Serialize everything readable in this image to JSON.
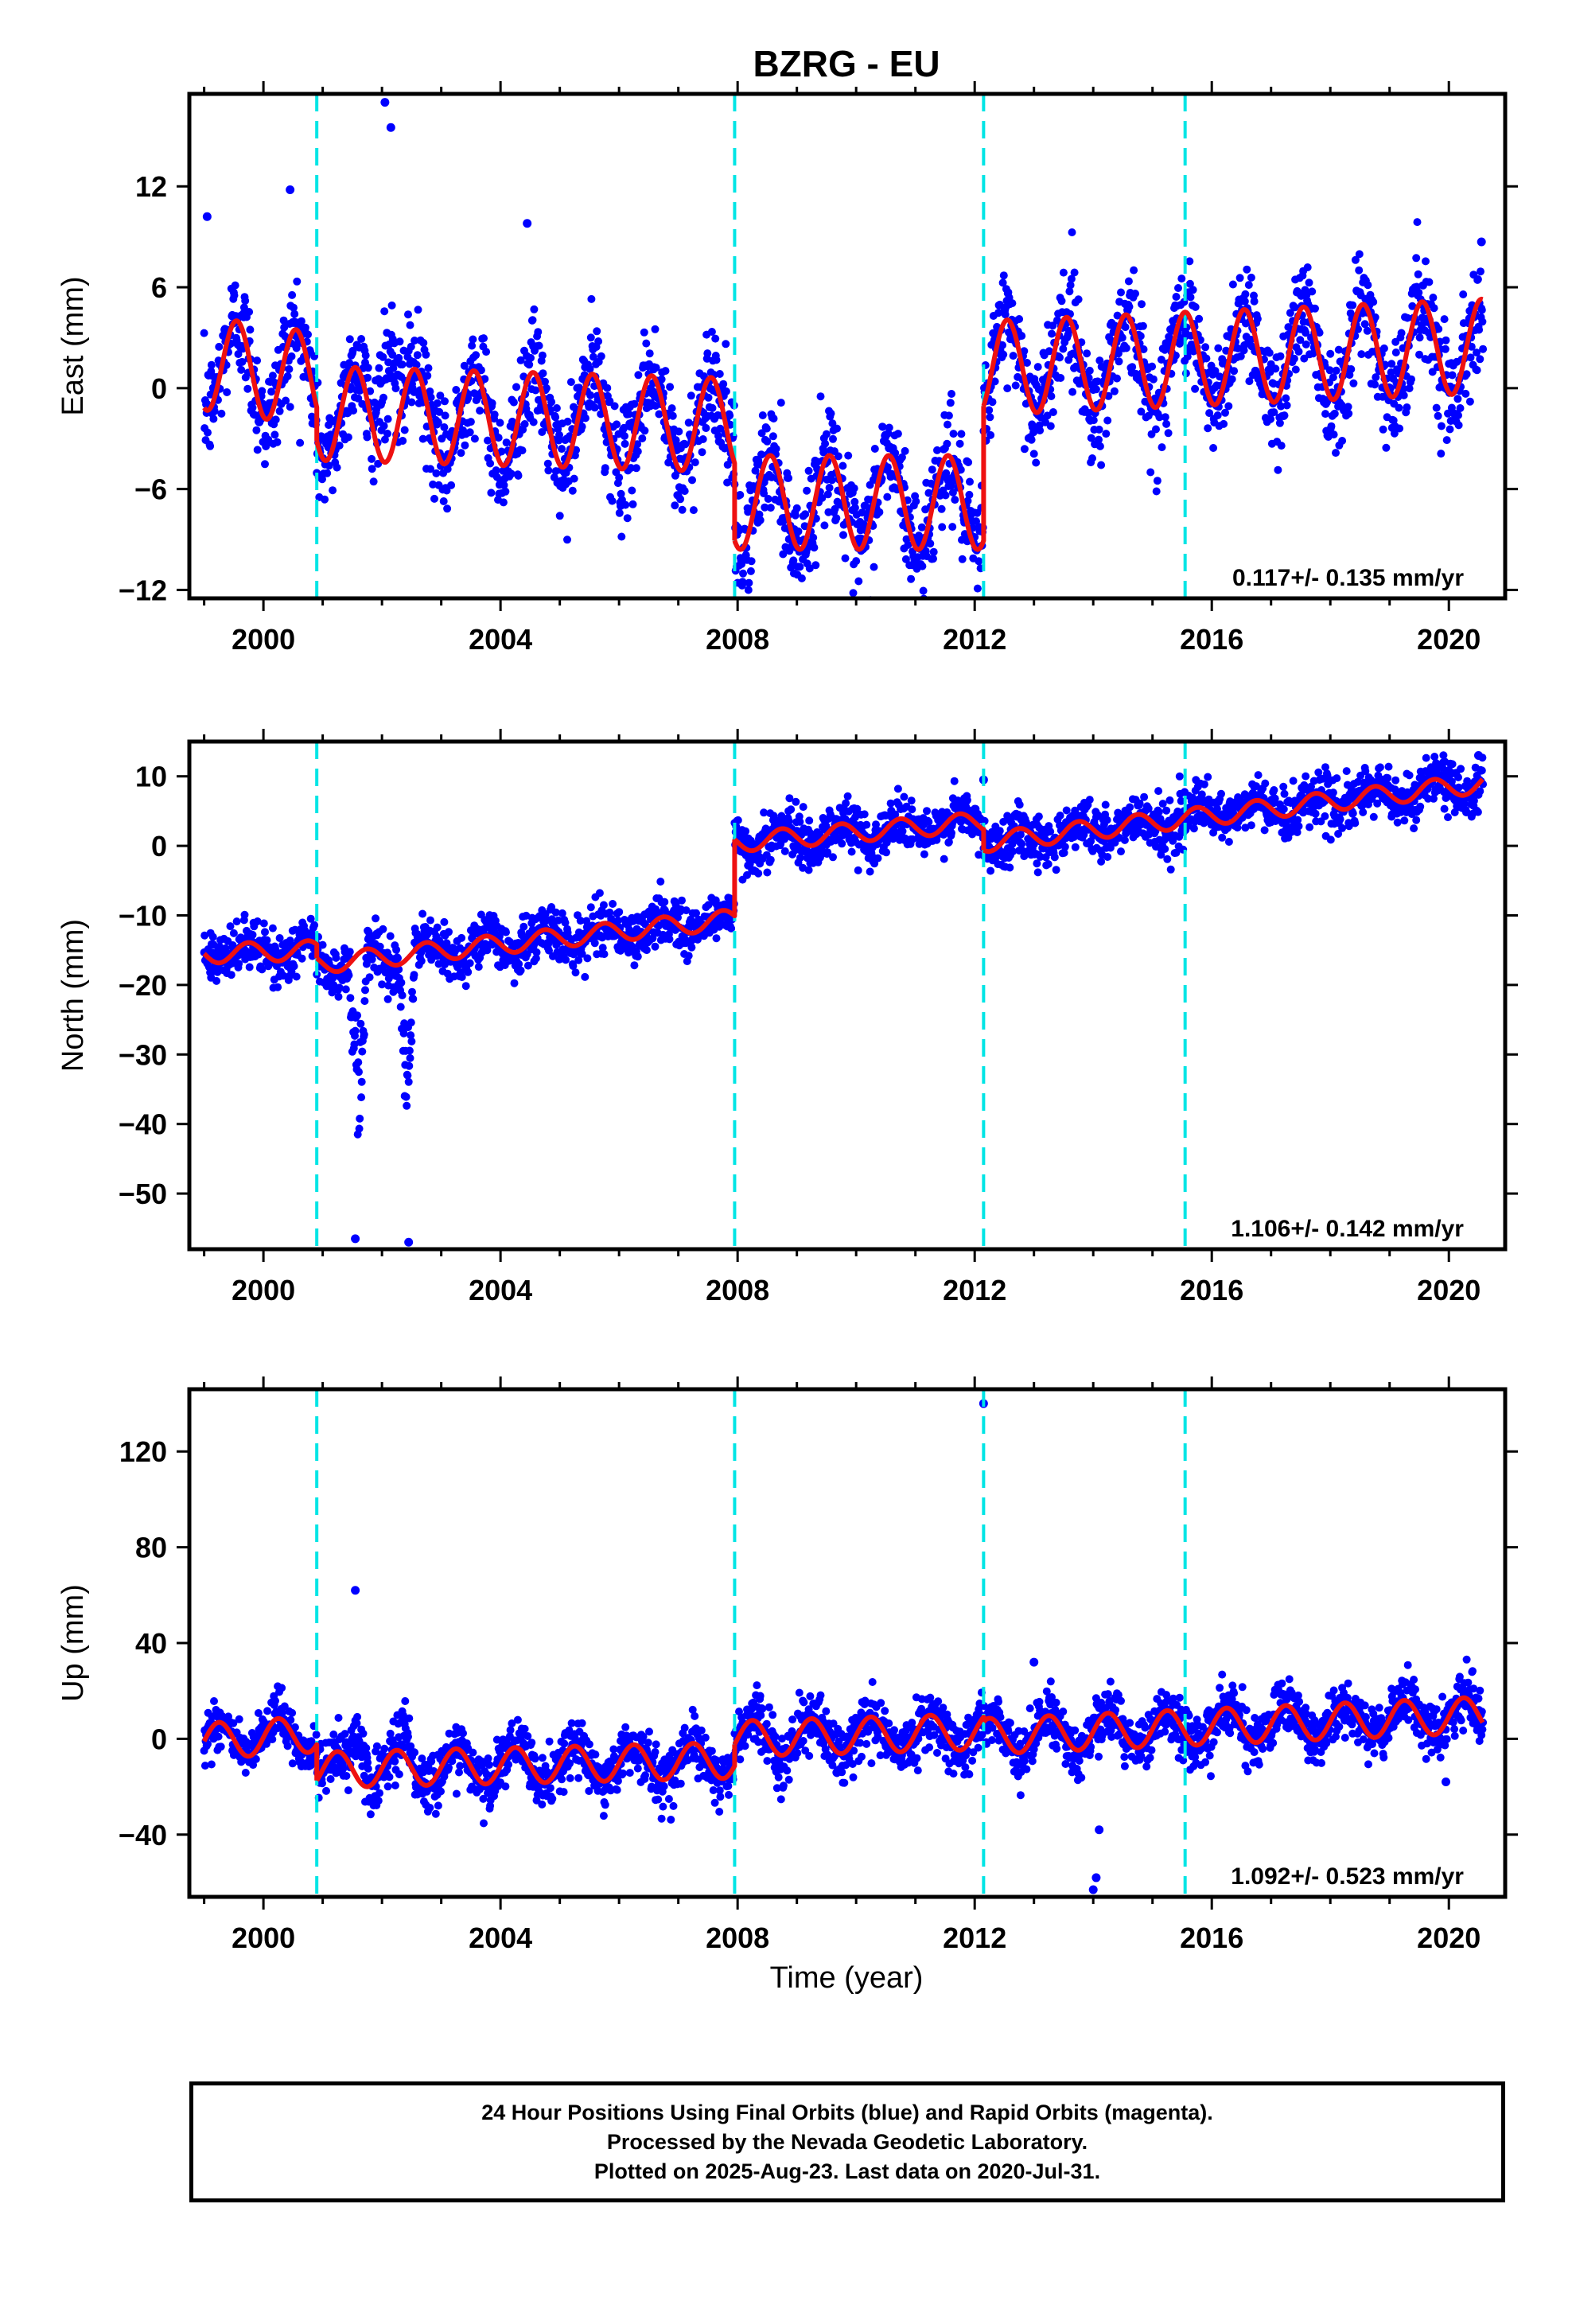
{
  "title": "BZRG - EU",
  "xlabel": "Time (year)",
  "footer": {
    "line1": "24 Hour Positions Using Final Orbits (blue) and Rapid Orbits (magenta).",
    "line2": "Processed by the Nevada Geodetic Laboratory.",
    "line3": "Plotted on 2025-Aug-23. Last data on 2020-Jul-31."
  },
  "colors": {
    "final_orbits": "#0000ff",
    "model_fit": "#ee1111",
    "equipment_change": "#00e5e5",
    "frame": "#000000"
  },
  "chart_data": [
    {
      "type": "scatter",
      "name": "east",
      "ylabel": "East (mm)",
      "xlim": [
        1998.75,
        2020.95
      ],
      "ylim": [
        -12.5,
        17.5
      ],
      "yticks": [
        -12,
        -6,
        0,
        6,
        12
      ],
      "xticks": [
        2000,
        2004,
        2008,
        2012,
        2016,
        2020
      ],
      "velocity_label": "0.117+/- 0.135 mm/yr",
      "steps": [
        2000.9,
        2007.95,
        2012.15,
        2015.55
      ],
      "data_range": [
        1999.0,
        2020.58
      ],
      "segments": [
        {
          "from": 1999.0,
          "to": 2000.9,
          "start": 1.5,
          "end": 0.5
        },
        {
          "from": 2000.9,
          "to": 2007.95,
          "start": -1.5,
          "end": -2.2
        },
        {
          "from": 2007.95,
          "to": 2012.15,
          "start": -6.8,
          "end": -6.8
        },
        {
          "from": 2012.15,
          "to": 2020.58,
          "start": 1.2,
          "end": 2.5
        }
      ],
      "seasonal_amplitude": 2.8,
      "seasonal_phase": 0.3,
      "scatter_sd": 1.6,
      "anomalies": [
        {
          "from": 2001.85,
          "to": 2002.35,
          "offset": 7.0
        }
      ],
      "outliers": [
        [
          2002.05,
          17.0
        ],
        [
          2002.15,
          15.5
        ],
        [
          2004.45,
          9.8
        ],
        [
          1999.05,
          10.2
        ],
        [
          2000.45,
          11.8
        ],
        [
          2020.55,
          8.7
        ]
      ]
    },
    {
      "type": "scatter",
      "name": "north",
      "ylabel": "North (mm)",
      "xlim": [
        1998.75,
        2020.95
      ],
      "ylim": [
        -58,
        15
      ],
      "yticks": [
        -50,
        -40,
        -30,
        -20,
        -10,
        0,
        10
      ],
      "xticks": [
        2000,
        2004,
        2008,
        2012,
        2016,
        2020
      ],
      "velocity_label": "1.106+/- 0.142 mm/yr",
      "steps": [
        2000.9,
        2007.95,
        2012.15,
        2015.55
      ],
      "data_range": [
        1999.0,
        2020.58
      ],
      "segments": [
        {
          "from": 1999.0,
          "to": 2000.9,
          "start": -15.5,
          "end": -15.0
        },
        {
          "from": 2000.9,
          "to": 2007.95,
          "start": -17.0,
          "end": -10.5
        },
        {
          "from": 2007.95,
          "to": 2012.15,
          "start": 0.5,
          "end": 3.5
        },
        {
          "from": 2012.15,
          "to": 2020.58,
          "start": 0.5,
          "end": 9.0
        }
      ],
      "seasonal_amplitude": 1.4,
      "seasonal_phase": 0.5,
      "scatter_sd": 1.8,
      "anomalies": [
        {
          "from": 2001.45,
          "to": 2001.75,
          "offset": -25.0
        },
        {
          "from": 2002.3,
          "to": 2002.55,
          "offset": -22.0
        }
      ],
      "outliers": [
        [
          2001.55,
          -56.5
        ],
        [
          2002.45,
          -57.0
        ],
        [
          2012.15,
          9.5
        ],
        [
          2020.5,
          13.0
        ]
      ]
    },
    {
      "type": "scatter",
      "name": "up",
      "ylabel": "Up (mm)",
      "xlim": [
        1998.75,
        2020.95
      ],
      "ylim": [
        -66,
        146
      ],
      "yticks": [
        -40,
        0,
        40,
        80,
        120
      ],
      "xticks": [
        2000,
        2004,
        2008,
        2012,
        2016,
        2020
      ],
      "velocity_label": "1.092+/- 0.523 mm/yr",
      "steps": [
        2000.9,
        2007.95,
        2012.15,
        2015.55
      ],
      "data_range": [
        1999.0,
        2020.58
      ],
      "segments": [
        {
          "from": 1999.0,
          "to": 2000.9,
          "start": -1.0,
          "end": 2.0
        },
        {
          "from": 2000.9,
          "to": 2007.95,
          "start": -13.0,
          "end": -9.0
        },
        {
          "from": 2007.95,
          "to": 2012.15,
          "start": 0.0,
          "end": 3.0
        },
        {
          "from": 2012.15,
          "to": 2020.58,
          "start": 1.0,
          "end": 10.0
        }
      ],
      "seasonal_amplitude": 7.5,
      "seasonal_phase": 0.0,
      "scatter_sd": 5.5,
      "anomalies": [
        {
          "from": 2001.45,
          "to": 2001.8,
          "offset": 22.0
        },
        {
          "from": 2002.3,
          "to": 2002.5,
          "offset": 16.0
        }
      ],
      "outliers": [
        [
          2012.15,
          140.0
        ],
        [
          2001.55,
          62.0
        ],
        [
          2014.1,
          -38.0
        ],
        [
          2014.0,
          -63.0
        ],
        [
          2014.05,
          -58.0
        ],
        [
          2019.95,
          -18.0
        ],
        [
          2013.0,
          32.0
        ]
      ]
    }
  ]
}
